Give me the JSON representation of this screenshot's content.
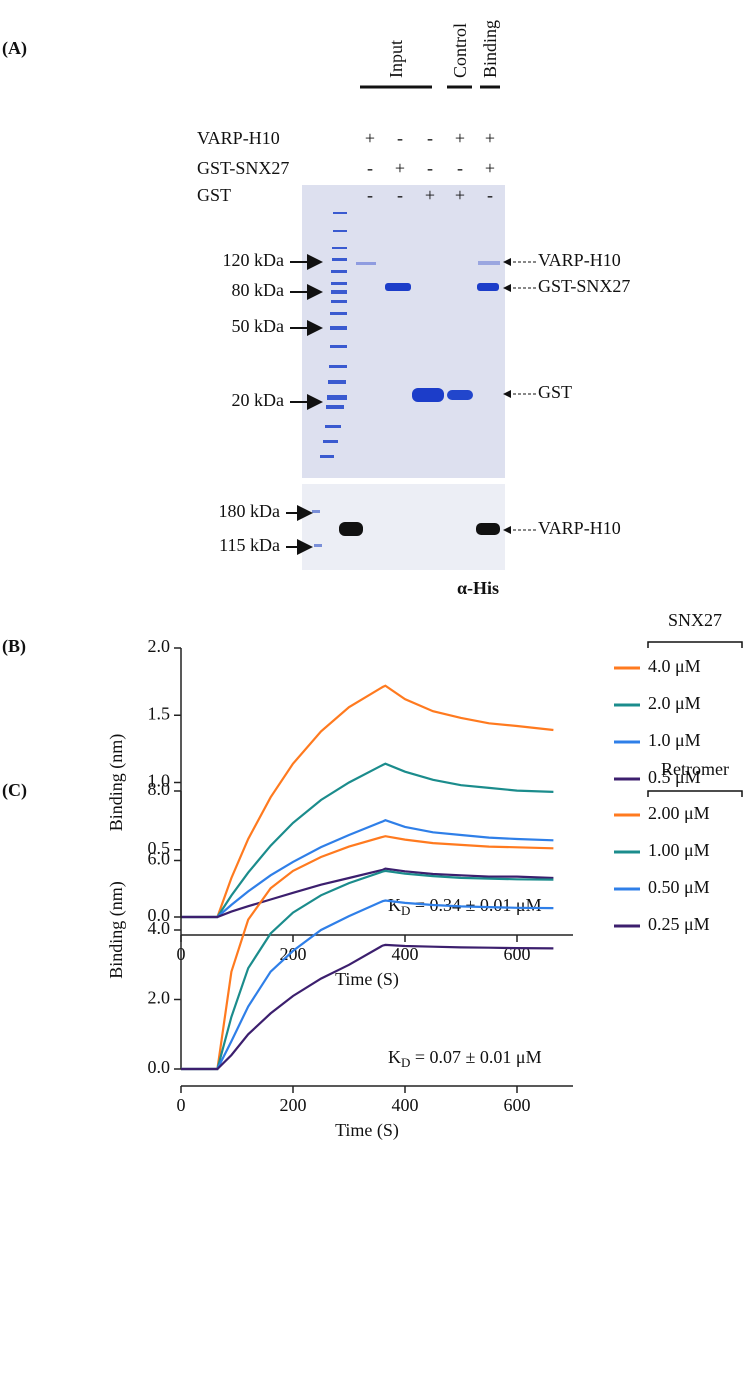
{
  "panel_a": {
    "label": "(A)",
    "headers": [
      "Input",
      "Control",
      "Binding"
    ],
    "rows": [
      {
        "name": "VARP-H10",
        "signs": [
          "+",
          "-",
          "-",
          "+",
          "+"
        ]
      },
      {
        "name": "GST-SNX27",
        "signs": [
          "-",
          "+",
          "-",
          "-",
          "+"
        ]
      },
      {
        "name": "GST",
        "signs": [
          "-",
          "-",
          "+",
          "+",
          "-"
        ]
      }
    ],
    "gel_markers": [
      "120 kDa",
      "80 kDa",
      "50 kDa",
      "20 kDa"
    ],
    "gel_bands": [
      "VARP-H10",
      "GST-SNX27",
      "GST"
    ],
    "blot_markers": [
      "180 kDa",
      "115 kDa"
    ],
    "blot_band": "VARP-H10",
    "blot_label": "α-His"
  },
  "chart_data": [
    {
      "type": "line",
      "panel": "(B)",
      "xlabel": "Time (S)",
      "ylabel": "Binding (nm)",
      "legend_title": "SNX27",
      "annotation": {
        "main": "K",
        "sub": "D",
        "rest": " = 0.34 ± 0.01 μM"
      },
      "x": [
        0,
        65,
        90,
        120,
        160,
        200,
        250,
        300,
        360,
        365,
        400,
        450,
        500,
        550,
        600,
        665
      ],
      "xlim": [
        0,
        700
      ],
      "xticks": [
        0,
        200,
        400,
        600
      ],
      "ylim": [
        0,
        2
      ],
      "yticks": [
        {
          "value": 0,
          "label": "0.0"
        },
        {
          "value": 0.5,
          "label": "0.5"
        },
        {
          "value": 1,
          "label": "1.0"
        },
        {
          "value": 1.5,
          "label": "1.5"
        },
        {
          "value": 2,
          "label": "2.0"
        }
      ],
      "series": [
        {
          "name": "4.0 μM",
          "color": "#ff7a1f",
          "values": [
            0,
            0,
            0.29,
            0.58,
            0.89,
            1.14,
            1.38,
            1.56,
            1.71,
            1.72,
            1.62,
            1.53,
            1.48,
            1.44,
            1.42,
            1.39
          ]
        },
        {
          "name": "2.0 μM",
          "color": "#1b8c8c",
          "values": [
            0,
            0,
            0.16,
            0.33,
            0.53,
            0.7,
            0.87,
            1.0,
            1.13,
            1.14,
            1.08,
            1.02,
            0.98,
            0.96,
            0.94,
            0.93
          ]
        },
        {
          "name": "1.0 μM",
          "color": "#2f7fe8",
          "values": [
            0,
            0,
            0.09,
            0.19,
            0.31,
            0.41,
            0.52,
            0.61,
            0.71,
            0.72,
            0.67,
            0.63,
            0.61,
            0.59,
            0.58,
            0.57
          ]
        },
        {
          "name": "0.5 μM",
          "color": "#3c1f6e",
          "values": [
            0,
            0,
            0.04,
            0.08,
            0.13,
            0.18,
            0.24,
            0.29,
            0.35,
            0.36,
            0.34,
            0.32,
            0.31,
            0.3,
            0.3,
            0.29
          ]
        }
      ]
    },
    {
      "type": "line",
      "panel": "(C)",
      "xlabel": "Time (S)",
      "ylabel": "Binding (nm)",
      "legend_title": "Retromer",
      "annotation": {
        "main": "K",
        "sub": "D",
        "rest": " = 0.07 ± 0.01 μM"
      },
      "x": [
        0,
        65,
        90,
        120,
        160,
        200,
        250,
        300,
        360,
        365,
        400,
        450,
        500,
        550,
        600,
        665
      ],
      "xlim": [
        0,
        700
      ],
      "xticks": [
        0,
        200,
        400,
        600
      ],
      "ylim": [
        0,
        8
      ],
      "yticks": [
        {
          "value": 0,
          "label": "0.0"
        },
        {
          "value": 2,
          "label": "2.0"
        },
        {
          "value": 4,
          "label": "4.0"
        },
        {
          "value": 6,
          "label": "6.0"
        },
        {
          "value": 8,
          "label": "8.0"
        }
      ],
      "series": [
        {
          "name": "2.00 μM",
          "color": "#ff7a1f",
          "values": [
            0,
            0,
            2.8,
            4.3,
            5.2,
            5.7,
            6.1,
            6.4,
            6.68,
            6.7,
            6.6,
            6.5,
            6.45,
            6.4,
            6.38,
            6.35
          ]
        },
        {
          "name": "1.00 μM",
          "color": "#1b8c8c",
          "values": [
            0,
            0,
            1.5,
            2.9,
            3.9,
            4.5,
            5.0,
            5.35,
            5.68,
            5.7,
            5.62,
            5.55,
            5.5,
            5.48,
            5.46,
            5.45
          ]
        },
        {
          "name": "0.50 μM",
          "color": "#2f7fe8",
          "values": [
            0,
            0,
            0.8,
            1.8,
            2.8,
            3.4,
            4.0,
            4.4,
            4.83,
            4.85,
            4.78,
            4.72,
            4.68,
            4.66,
            4.64,
            4.63
          ]
        },
        {
          "name": "0.25 μM",
          "color": "#3c1f6e",
          "values": [
            0,
            0,
            0.4,
            1.0,
            1.6,
            2.1,
            2.6,
            3.0,
            3.55,
            3.57,
            3.54,
            3.52,
            3.5,
            3.49,
            3.48,
            3.47
          ]
        }
      ]
    }
  ]
}
